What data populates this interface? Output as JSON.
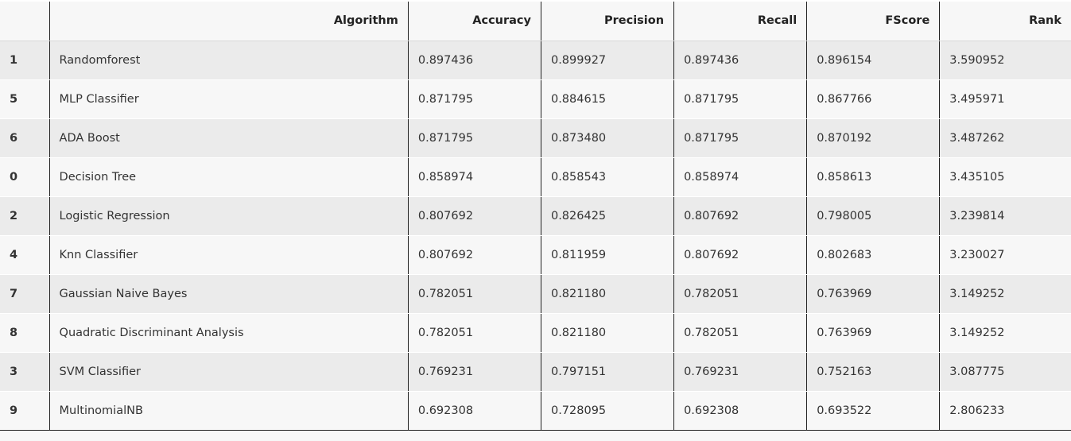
{
  "table": {
    "columns": [
      "",
      "Algorithm",
      "Accuracy",
      "Precision",
      "Recall",
      "FScore",
      "Rank"
    ],
    "rows": [
      {
        "index": "1",
        "algorithm": "Randomforest",
        "accuracy": "0.897436",
        "precision": "0.899927",
        "recall": "0.897436",
        "fscore": "0.896154",
        "rank": "3.590952"
      },
      {
        "index": "5",
        "algorithm": "MLP Classifier",
        "accuracy": "0.871795",
        "precision": "0.884615",
        "recall": "0.871795",
        "fscore": "0.867766",
        "rank": "3.495971"
      },
      {
        "index": "6",
        "algorithm": "ADA Boost",
        "accuracy": "0.871795",
        "precision": "0.873480",
        "recall": "0.871795",
        "fscore": "0.870192",
        "rank": "3.487262"
      },
      {
        "index": "0",
        "algorithm": "Decision Tree",
        "accuracy": "0.858974",
        "precision": "0.858543",
        "recall": "0.858974",
        "fscore": "0.858613",
        "rank": "3.435105"
      },
      {
        "index": "2",
        "algorithm": "Logistic Regression",
        "accuracy": "0.807692",
        "precision": "0.826425",
        "recall": "0.807692",
        "fscore": "0.798005",
        "rank": "3.239814"
      },
      {
        "index": "4",
        "algorithm": "Knn Classifier",
        "accuracy": "0.807692",
        "precision": "0.811959",
        "recall": "0.807692",
        "fscore": "0.802683",
        "rank": "3.230027"
      },
      {
        "index": "7",
        "algorithm": "Gaussian Naive Bayes",
        "accuracy": "0.782051",
        "precision": "0.821180",
        "recall": "0.782051",
        "fscore": "0.763969",
        "rank": "3.149252"
      },
      {
        "index": "8",
        "algorithm": "Quadratic Discriminant Analysis",
        "accuracy": "0.782051",
        "precision": "0.821180",
        "recall": "0.782051",
        "fscore": "0.763969",
        "rank": "3.149252"
      },
      {
        "index": "3",
        "algorithm": "SVM Classifier",
        "accuracy": "0.769231",
        "precision": "0.797151",
        "recall": "0.769231",
        "fscore": "0.752163",
        "rank": "3.087775"
      },
      {
        "index": "9",
        "algorithm": "MultinomialNB",
        "accuracy": "0.692308",
        "precision": "0.728095",
        "recall": "0.692308",
        "fscore": "0.693522",
        "rank": "2.806233"
      }
    ]
  }
}
